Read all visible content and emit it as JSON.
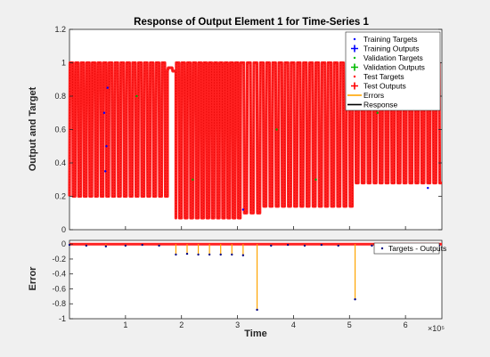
{
  "chart_data": [
    {
      "type": "line",
      "title": "Response of Output Element 1 for Time-Series 1",
      "xlabel": "",
      "ylabel": "Output and Target",
      "xlim": [
        0,
        6.65
      ],
      "ylim": [
        0,
        1.2
      ],
      "yticks": [
        "0",
        "0.2",
        "0.4",
        "0.6",
        "0.8",
        "1",
        "1.2"
      ],
      "xticks": [],
      "legend_position": "top-right",
      "legend": [
        {
          "label": "Training Targets",
          "marker": "dot",
          "color": "#0000ff"
        },
        {
          "label": "Training Outputs",
          "marker": "plus",
          "color": "#0000ff"
        },
        {
          "label": "Validation Targets",
          "marker": "dot",
          "color": "#00bb00"
        },
        {
          "label": "Validation Outputs",
          "marker": "plus",
          "color": "#00bb00"
        },
        {
          "label": "Test Targets",
          "marker": "dot",
          "color": "#ff0000"
        },
        {
          "label": "Test Outputs",
          "marker": "plus",
          "color": "#ff0000"
        },
        {
          "label": "Errors",
          "marker": "line",
          "color": "#ffa500"
        },
        {
          "label": "Response",
          "marker": "line",
          "color": "#000000"
        }
      ],
      "series": [
        {
          "name": "Response",
          "color": "#ff0000",
          "segments": [
            {
              "x0": 0.0,
              "x1": 0.7,
              "count": 7,
              "high": 1.0,
              "low": 0.2
            },
            {
              "x0": 0.7,
              "x1": 1.75,
              "count": 10,
              "high": 1.0,
              "low": 0.2
            },
            {
              "x0": 1.75,
              "x1": 1.9,
              "count": 1,
              "high": 0.97,
              "low": 0.95
            },
            {
              "x0": 1.9,
              "x1": 2.3,
              "count": 4,
              "high": 1.0,
              "low": 0.07
            },
            {
              "x0": 2.3,
              "x1": 3.05,
              "count": 8,
              "high": 1.0,
              "low": 0.07
            },
            {
              "x0": 3.05,
              "x1": 3.4,
              "count": 3,
              "high": 1.0,
              "low": 0.1
            },
            {
              "x0": 3.4,
              "x1": 5.05,
              "count": 15,
              "high": 1.0,
              "low": 0.14
            },
            {
              "x0": 5.05,
              "x1": 6.65,
              "count": 15,
              "high": 1.0,
              "low": 0.28
            }
          ]
        }
      ]
    },
    {
      "type": "line",
      "title": "",
      "xlabel": "Time",
      "ylabel": "Error",
      "xlim": [
        0,
        6.65
      ],
      "ylim": [
        -1.0,
        0.05
      ],
      "yticks": [
        "-1",
        "-0.8",
        "-0.6",
        "-0.4",
        "-0.2",
        "0"
      ],
      "xticks": [
        "1",
        "2",
        "3",
        "4",
        "5",
        "6"
      ],
      "xscale_note": "×10⁵",
      "legend_position": "top-right",
      "legend": [
        {
          "label": "Targets - Outputs",
          "marker": "dot",
          "color": "#000080"
        }
      ],
      "series": [
        {
          "name": "Targets - Outputs",
          "color": "#ffa500",
          "x": [
            0.0,
            0.3,
            0.65,
            1.0,
            1.3,
            1.6,
            1.9,
            2.1,
            2.3,
            2.5,
            2.7,
            2.9,
            3.1,
            3.35,
            3.6,
            3.9,
            4.2,
            4.5,
            4.8,
            5.1,
            5.4,
            5.7,
            6.0,
            6.3,
            6.6
          ],
          "y": [
            -0.01,
            -0.02,
            -0.03,
            -0.02,
            -0.01,
            -0.02,
            -0.14,
            -0.13,
            -0.14,
            -0.14,
            -0.14,
            -0.14,
            -0.15,
            -0.88,
            -0.02,
            -0.01,
            -0.02,
            -0.01,
            -0.02,
            -0.74,
            -0.02,
            -0.01,
            -0.02,
            -0.01,
            -0.02
          ]
        }
      ]
    }
  ]
}
